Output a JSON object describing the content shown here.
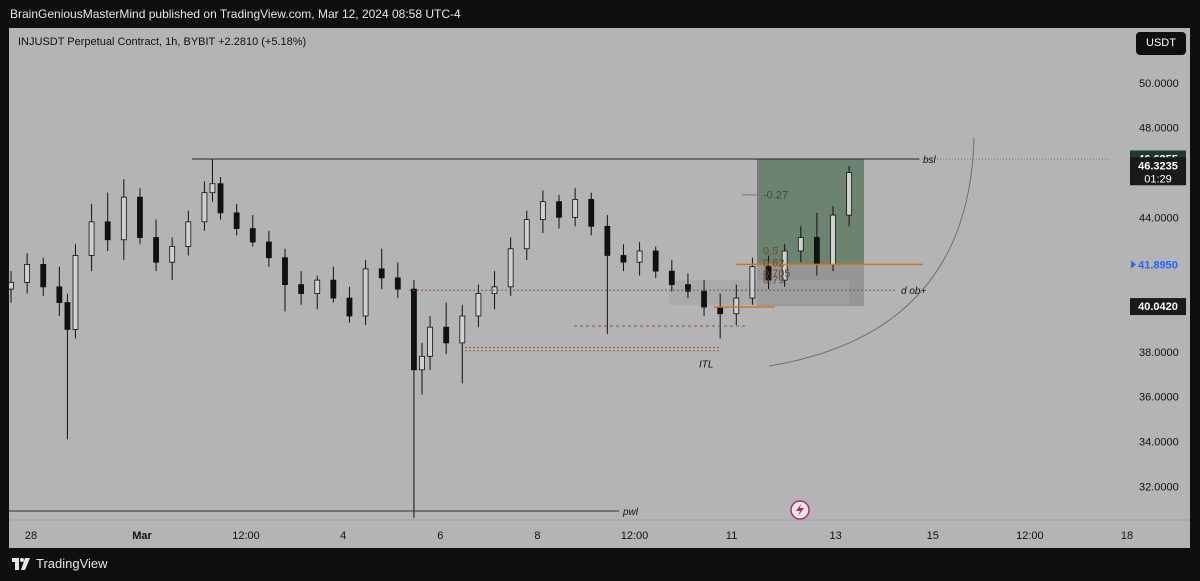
{
  "header": {
    "publisher_text": "BrainGeniousMasterMind published on TradingView.com, Mar 12, 2024 08:58 UTC-4"
  },
  "symbol": {
    "line": "INJUSDT Perpetual Contract, 1h, BYBIT  +2.2810 (+5.18%)",
    "currency_button": "USDT"
  },
  "footer": {
    "brand": "TradingView"
  },
  "colors": {
    "chart_bg": "#b4b4b6",
    "candle": "#111111",
    "target_zone": "#5f7a63",
    "stop_zone": "#8f8f92",
    "orange_line": "#c87a2a",
    "price_tag_green": "#1c3b2c",
    "price_tag_blue_text": "#2962ff",
    "price_tag_dark": "#1a1a1a"
  },
  "chart_data": {
    "type": "candlestick",
    "title": "INJUSDT Perpetual Contract, 1h, BYBIT",
    "ylim": [
      30.5,
      52.0
    ],
    "y_ticks": [
      "50.0000",
      "48.0000",
      "44.0000",
      "42.0000",
      "38.0000",
      "36.0000",
      "34.0000",
      "32.0000"
    ],
    "x_ticks": [
      "28",
      "Mar",
      "12:00",
      "4",
      "6",
      "8",
      "12:00",
      "11",
      "13",
      "15",
      "12:00",
      "18"
    ],
    "price_tags": [
      {
        "label": "46.6255",
        "price": 46.6255,
        "style": "green"
      },
      {
        "label": "46.3235",
        "price": 46.3235,
        "style": "dark",
        "countdown": "01:29"
      },
      {
        "label": "41.8950",
        "price": 41.895,
        "style": "blue"
      },
      {
        "label": "40.0420",
        "price": 40.042,
        "style": "dark"
      }
    ],
    "series": [
      {
        "x": 0.0,
        "open": 40.8,
        "high": 41.6,
        "low": 40.2,
        "close": 41.1
      },
      {
        "x": 1.0,
        "open": 41.1,
        "high": 42.4,
        "low": 40.6,
        "close": 41.9
      },
      {
        "x": 2.0,
        "open": 41.9,
        "high": 42.2,
        "low": 40.5,
        "close": 40.9
      },
      {
        "x": 3.0,
        "open": 40.9,
        "high": 41.8,
        "low": 39.6,
        "close": 40.2
      },
      {
        "x": 3.5,
        "open": 40.2,
        "high": 40.6,
        "low": 34.1,
        "close": 39.0
      },
      {
        "x": 4.0,
        "open": 39.0,
        "high": 42.8,
        "low": 38.6,
        "close": 42.3
      },
      {
        "x": 5.0,
        "open": 42.3,
        "high": 44.6,
        "low": 41.6,
        "close": 43.8
      },
      {
        "x": 6.0,
        "open": 43.8,
        "high": 45.1,
        "low": 42.5,
        "close": 43.0
      },
      {
        "x": 7.0,
        "open": 43.0,
        "high": 45.7,
        "low": 42.1,
        "close": 44.9
      },
      {
        "x": 8.0,
        "open": 44.9,
        "high": 45.3,
        "low": 42.8,
        "close": 43.1
      },
      {
        "x": 9.0,
        "open": 43.1,
        "high": 43.9,
        "low": 41.6,
        "close": 42.0
      },
      {
        "x": 10.0,
        "open": 42.0,
        "high": 43.1,
        "low": 41.2,
        "close": 42.7
      },
      {
        "x": 11.0,
        "open": 42.7,
        "high": 44.3,
        "low": 42.3,
        "close": 43.8
      },
      {
        "x": 12.0,
        "open": 43.8,
        "high": 45.6,
        "low": 43.4,
        "close": 45.1
      },
      {
        "x": 12.5,
        "open": 45.1,
        "high": 46.6,
        "low": 44.7,
        "close": 45.5
      },
      {
        "x": 13.0,
        "open": 45.5,
        "high": 45.8,
        "low": 43.9,
        "close": 44.2
      },
      {
        "x": 14.0,
        "open": 44.2,
        "high": 44.6,
        "low": 43.2,
        "close": 43.5
      },
      {
        "x": 15.0,
        "open": 43.5,
        "high": 44.1,
        "low": 42.7,
        "close": 42.9
      },
      {
        "x": 16.0,
        "open": 42.9,
        "high": 43.4,
        "low": 41.8,
        "close": 42.2
      },
      {
        "x": 17.0,
        "open": 42.2,
        "high": 42.6,
        "low": 39.8,
        "close": 41.0
      },
      {
        "x": 18.0,
        "open": 41.0,
        "high": 41.6,
        "low": 40.1,
        "close": 40.6
      },
      {
        "x": 19.0,
        "open": 40.6,
        "high": 41.4,
        "low": 39.9,
        "close": 41.2
      },
      {
        "x": 20.0,
        "open": 41.2,
        "high": 41.8,
        "low": 40.2,
        "close": 40.4
      },
      {
        "x": 21.0,
        "open": 40.4,
        "high": 40.9,
        "low": 39.3,
        "close": 39.6
      },
      {
        "x": 22.0,
        "open": 39.6,
        "high": 42.1,
        "low": 39.2,
        "close": 41.7
      },
      {
        "x": 23.0,
        "open": 41.7,
        "high": 42.6,
        "low": 40.8,
        "close": 41.3
      },
      {
        "x": 24.0,
        "open": 41.3,
        "high": 42.0,
        "low": 40.4,
        "close": 40.8
      },
      {
        "x": 25.0,
        "open": 40.8,
        "high": 41.2,
        "low": 30.6,
        "close": 37.2
      },
      {
        "x": 25.5,
        "open": 37.2,
        "high": 38.4,
        "low": 36.1,
        "close": 37.8
      },
      {
        "x": 26.0,
        "open": 37.8,
        "high": 39.6,
        "low": 37.2,
        "close": 39.1
      },
      {
        "x": 27.0,
        "open": 39.1,
        "high": 40.2,
        "low": 37.9,
        "close": 38.4
      },
      {
        "x": 28.0,
        "open": 38.4,
        "high": 40.1,
        "low": 36.6,
        "close": 39.6
      },
      {
        "x": 29.0,
        "open": 39.6,
        "high": 41.0,
        "low": 39.1,
        "close": 40.6
      },
      {
        "x": 30.0,
        "open": 40.6,
        "high": 41.6,
        "low": 39.9,
        "close": 40.9
      },
      {
        "x": 31.0,
        "open": 40.9,
        "high": 43.1,
        "low": 40.5,
        "close": 42.6
      },
      {
        "x": 32.0,
        "open": 42.6,
        "high": 44.3,
        "low": 42.1,
        "close": 43.9
      },
      {
        "x": 33.0,
        "open": 43.9,
        "high": 45.2,
        "low": 43.3,
        "close": 44.7
      },
      {
        "x": 34.0,
        "open": 44.7,
        "high": 45.0,
        "low": 43.5,
        "close": 44.0
      },
      {
        "x": 35.0,
        "open": 44.0,
        "high": 45.3,
        "low": 43.6,
        "close": 44.8
      },
      {
        "x": 36.0,
        "open": 44.8,
        "high": 45.1,
        "low": 43.2,
        "close": 43.6
      },
      {
        "x": 37.0,
        "open": 43.6,
        "high": 44.1,
        "low": 38.8,
        "close": 42.3
      },
      {
        "x": 38.0,
        "open": 42.3,
        "high": 42.8,
        "low": 41.6,
        "close": 42.0
      },
      {
        "x": 39.0,
        "open": 42.0,
        "high": 42.9,
        "low": 41.4,
        "close": 42.5
      },
      {
        "x": 40.0,
        "open": 42.5,
        "high": 42.7,
        "low": 41.3,
        "close": 41.6
      },
      {
        "x": 41.0,
        "open": 41.6,
        "high": 42.1,
        "low": 40.7,
        "close": 41.0
      },
      {
        "x": 42.0,
        "open": 41.0,
        "high": 41.5,
        "low": 40.4,
        "close": 40.7
      },
      {
        "x": 43.0,
        "open": 40.7,
        "high": 41.2,
        "low": 39.6,
        "close": 40.0
      },
      {
        "x": 44.0,
        "open": 40.0,
        "high": 40.6,
        "low": 38.6,
        "close": 39.7
      },
      {
        "x": 45.0,
        "open": 39.7,
        "high": 41.0,
        "low": 39.2,
        "close": 40.4
      },
      {
        "x": 46.0,
        "open": 40.4,
        "high": 42.2,
        "low": 40.1,
        "close": 41.8
      },
      {
        "x": 47.0,
        "open": 41.8,
        "high": 42.3,
        "low": 40.8,
        "close": 41.2
      },
      {
        "x": 48.0,
        "open": 41.2,
        "high": 42.8,
        "low": 40.9,
        "close": 42.5
      },
      {
        "x": 49.0,
        "open": 42.5,
        "high": 43.6,
        "low": 42.0,
        "close": 43.1
      },
      {
        "x": 50.0,
        "open": 43.1,
        "high": 44.2,
        "low": 41.4,
        "close": 41.9
      },
      {
        "x": 51.0,
        "open": 41.9,
        "high": 44.5,
        "low": 41.6,
        "close": 44.1
      },
      {
        "x": 52.0,
        "open": 44.1,
        "high": 46.3,
        "low": 43.6,
        "close": 46.0
      }
    ],
    "levels": [
      {
        "label": "bsl",
        "price": 46.6,
        "style": "solid-dark"
      },
      {
        "label": "pwl",
        "price": 30.9,
        "style": "solid-dark"
      },
      {
        "label": "d ob+",
        "price": 40.75,
        "style": "dotted-dark"
      },
      {
        "label": "ITL",
        "price": 38.1,
        "style": "text"
      }
    ],
    "fib_labels": [
      "-0.27",
      "0.5",
      "0.62",
      "0.705",
      "0.79"
    ],
    "position_tool": {
      "target": 46.6255,
      "entry": 41.895,
      "stop": 40.042
    }
  }
}
